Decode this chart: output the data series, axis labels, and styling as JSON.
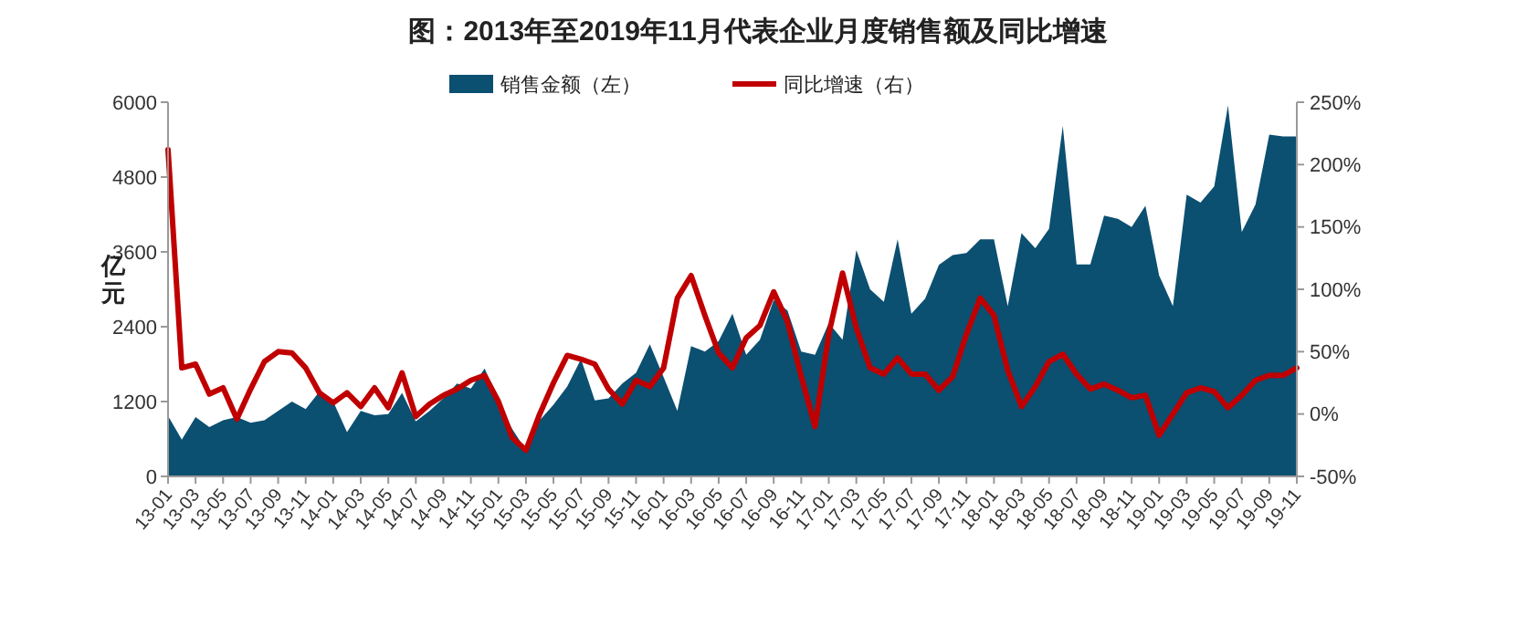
{
  "chart_data": {
    "type": "area",
    "title": "图：2013年至2019年11月代表企业月度销售额及同比增速",
    "ylabel": "亿元",
    "categories": [
      "13-01",
      null,
      "13-03",
      null,
      "13-05",
      null,
      "13-07",
      null,
      "13-09",
      null,
      "13-11",
      null,
      "14-01",
      null,
      "14-03",
      null,
      "14-05",
      null,
      "14-07",
      null,
      "14-09",
      null,
      "14-11",
      null,
      "15-01",
      null,
      "15-03",
      null,
      "15-05",
      null,
      "15-07",
      null,
      "15-09",
      null,
      "15-11",
      null,
      "16-01",
      null,
      "16-03",
      null,
      "16-05",
      null,
      "16-07",
      null,
      "16-09",
      null,
      "16-11",
      null,
      "17-01",
      null,
      "17-03",
      null,
      "17-05",
      null,
      "17-07",
      null,
      "17-09",
      null,
      "17-11",
      null,
      "18-01",
      null,
      "18-03",
      null,
      "18-05",
      null,
      "18-07",
      null,
      "18-09",
      null,
      "18-11",
      null,
      "19-01",
      null,
      "19-03",
      null,
      "19-05",
      null,
      "19-07",
      null,
      "19-09",
      null,
      "19-11"
    ],
    "series": [
      {
        "name": "销售金额（左）",
        "color": "#0b4f71",
        "values": [
          970,
          590,
          950,
          790,
          900,
          950,
          860,
          900,
          1050,
          1200,
          1080,
          1360,
          1200,
          710,
          1050,
          980,
          1000,
          1340,
          880,
          1050,
          1250,
          1490,
          1410,
          1730,
          1200,
          760,
          420,
          900,
          1150,
          1440,
          1880,
          1220,
          1250,
          1490,
          1660,
          2120,
          1590,
          1050,
          2090,
          2000,
          2170,
          2610,
          1950,
          2190,
          2830,
          2660,
          2000,
          1950,
          2460,
          2190,
          3630,
          3000,
          2800,
          3800,
          2610,
          2850,
          3390,
          3550,
          3580,
          3800,
          3800,
          2730,
          3900,
          3660,
          3970,
          5620,
          3400,
          3400,
          4180,
          4130,
          4000,
          4340,
          3220,
          2730,
          4520,
          4390,
          4650,
          5950,
          3920,
          4360,
          5480,
          5450,
          5450
        ]
      },
      {
        "name": "同比增速（右）",
        "type": "line",
        "axis": "y2",
        "color": "#c00000",
        "values": [
          212,
          37,
          40,
          16,
          21,
          -4,
          20,
          42,
          50,
          49,
          37,
          17,
          9,
          17,
          6,
          21,
          5,
          33,
          -2,
          8,
          15,
          20,
          27,
          31,
          10,
          -19,
          -29,
          0,
          25,
          47,
          44,
          40,
          20,
          8,
          27,
          22,
          37,
          93,
          111,
          79,
          49,
          37,
          61,
          71,
          98,
          74,
          30,
          -10,
          64,
          113,
          69,
          37,
          32,
          45,
          32,
          32,
          19,
          30,
          64,
          93,
          79,
          35,
          6,
          22,
          42,
          48,
          32,
          20,
          24,
          19,
          13,
          15,
          -17,
          0,
          17,
          21,
          18,
          5,
          15,
          27,
          31,
          31,
          37
        ]
      }
    ],
    "ylim": [
      0,
      6000
    ],
    "yticks": [
      0,
      1200,
      2400,
      3600,
      4800,
      6000
    ],
    "y2lim": [
      -50,
      250
    ],
    "y2ticks": [
      {
        "value": -50,
        "label": "-50%"
      },
      {
        "value": 0,
        "label": "0%"
      },
      {
        "value": 50,
        "label": "50%"
      },
      {
        "value": 100,
        "label": "100%"
      },
      {
        "value": 150,
        "label": "150%"
      },
      {
        "value": 200,
        "label": "200%"
      },
      {
        "value": 250,
        "label": "250%"
      }
    ],
    "legend": "top",
    "grid": false,
    "marker": "none",
    "line_style": "solid"
  }
}
